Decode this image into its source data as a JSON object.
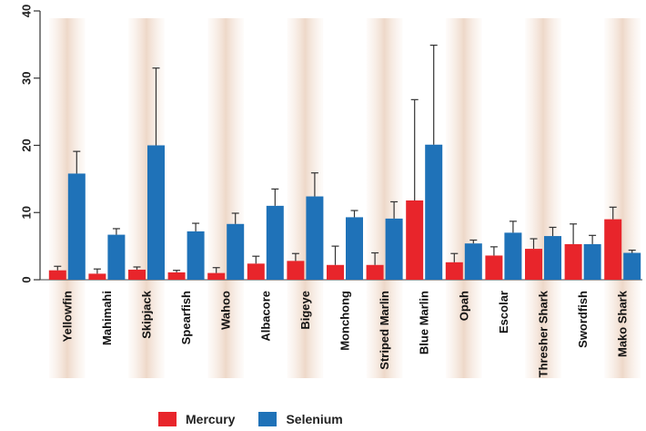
{
  "chart_data": {
    "type": "bar",
    "title": "",
    "xlabel": "",
    "ylabel": "",
    "ylim": [
      0,
      40
    ],
    "yticks": [
      0,
      10,
      20,
      30,
      40
    ],
    "categories": [
      "Yellowfin",
      "Mahimahi",
      "Skipjack",
      "Spearfish",
      "Wahoo",
      "Albacore",
      "Bigeye",
      "Monchong",
      "Striped Marlin",
      "Blue Marlin",
      "Opah",
      "Escolar",
      "Thresher Shark",
      "Swordfish",
      "Mako Shark"
    ],
    "series": [
      {
        "name": "Mercury",
        "color": "#e8252b",
        "values": [
          1.4,
          0.9,
          1.5,
          1.1,
          1.0,
          2.4,
          2.8,
          2.2,
          2.2,
          11.8,
          2.6,
          3.6,
          4.6,
          5.3,
          9.0
        ],
        "error": [
          0.6,
          0.7,
          0.4,
          0.3,
          0.8,
          1.1,
          1.1,
          2.8,
          1.8,
          15.0,
          1.3,
          1.3,
          1.5,
          3.0,
          1.8
        ]
      },
      {
        "name": "Selenium",
        "color": "#1f72b8",
        "values": [
          15.8,
          6.7,
          20.0,
          7.2,
          8.3,
          11.0,
          12.4,
          9.3,
          9.1,
          20.1,
          5.4,
          7.0,
          6.5,
          5.3,
          4.0
        ],
        "error": [
          3.3,
          0.9,
          11.5,
          1.2,
          1.6,
          2.5,
          3.5,
          1.0,
          2.5,
          14.8,
          0.5,
          1.7,
          1.3,
          1.3,
          0.4
        ]
      }
    ],
    "legend_position": "bottom",
    "grid": false
  }
}
